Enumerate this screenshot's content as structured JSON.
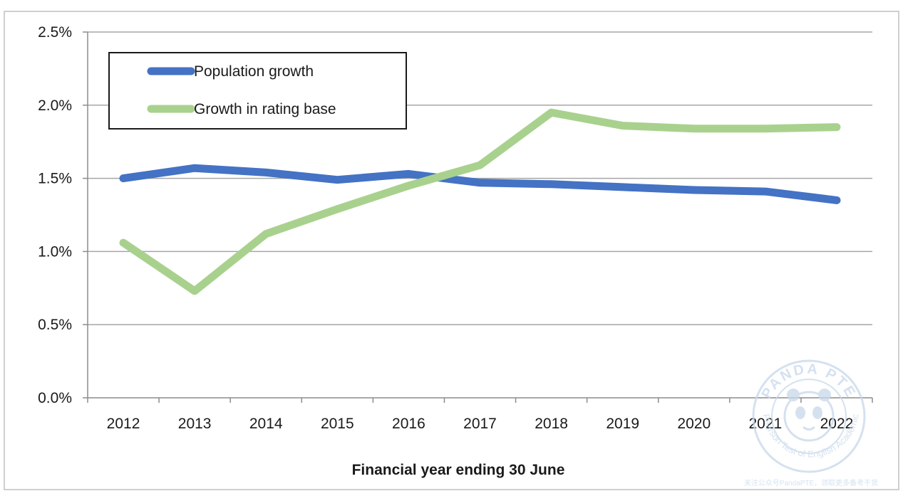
{
  "chart_data": {
    "type": "line",
    "title": "",
    "xlabel": "Financial year ending 30 June",
    "ylabel": "",
    "x": [
      "2012",
      "2013",
      "2014",
      "2015",
      "2016",
      "2017",
      "2018",
      "2019",
      "2020",
      "2021",
      "2022"
    ],
    "y_ticks": [
      "0.0%",
      "0.5%",
      "1.0%",
      "1.5%",
      "2.0%",
      "2.5%"
    ],
    "ylim": [
      0,
      2.5
    ],
    "grid": true,
    "legend_position": "top-left",
    "series": [
      {
        "name": "Population growth",
        "color": "#4472c4",
        "values": [
          1.5,
          1.57,
          1.54,
          1.49,
          1.53,
          1.47,
          1.46,
          1.44,
          1.42,
          1.41,
          1.35
        ]
      },
      {
        "name": "Growth in rating base",
        "color": "#a9d18e",
        "values": [
          1.06,
          0.73,
          1.12,
          1.29,
          1.45,
          1.59,
          1.95,
          1.86,
          1.84,
          1.84,
          1.85
        ]
      }
    ]
  },
  "watermark": {
    "top_text": "PANDA PTE",
    "ring_text": "Pearson Test of English Academic",
    "bottom_text": "关注公众号PandaPTE，领取更多备考干货"
  }
}
